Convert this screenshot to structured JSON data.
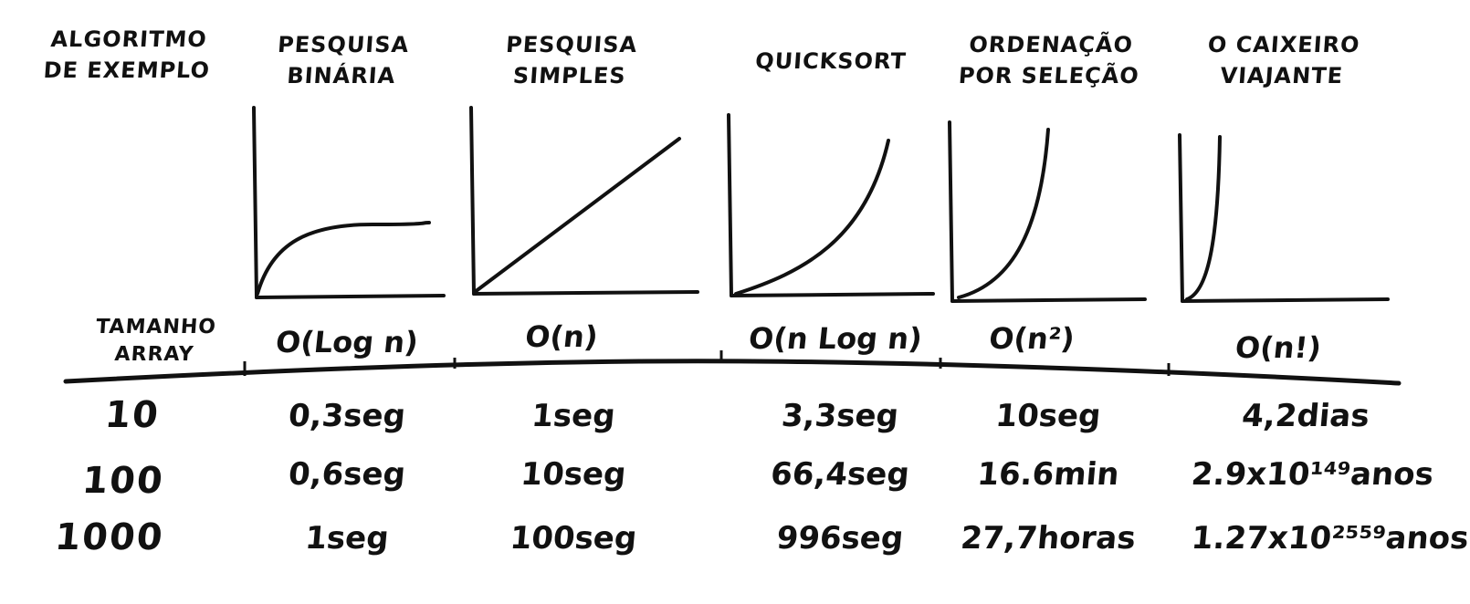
{
  "header": {
    "row_label": [
      "ALGORITMO",
      "DE EXEMPLO"
    ],
    "size_label": [
      "TAMANHO",
      "ARRAY"
    ]
  },
  "algorithms": [
    {
      "name": [
        "PESQUISA",
        "BINÁRIA"
      ],
      "complexity": "O(Log n)",
      "curve": "logarithmic",
      "times": [
        "0,3seg",
        "0,6seg",
        "1seg"
      ]
    },
    {
      "name": [
        "PESQUISA",
        "SIMPLES"
      ],
      "complexity": "O(n)",
      "curve": "linear",
      "times": [
        "1seg",
        "10seg",
        "100seg"
      ]
    },
    {
      "name": [
        "QUICKSORT"
      ],
      "complexity": "O(n Log n)",
      "curve": "n-log-n",
      "times": [
        "3,3seg",
        "66,4seg",
        "996seg"
      ]
    },
    {
      "name": [
        "ORDENAÇÃO",
        "POR SELEÇÃO"
      ],
      "complexity": "O(n²)",
      "curve": "quadratic",
      "times": [
        "10seg",
        "16.6min",
        "27,7horas"
      ]
    },
    {
      "name": [
        "O CAIXEIRO",
        "VIAJANTE"
      ],
      "complexity": "O(n!)",
      "curve": "factorial",
      "times": [
        "4,2dias",
        "2.9x10¹⁴⁹anos",
        "1.27x10²⁵⁵⁹anos"
      ]
    }
  ],
  "sizes": [
    "10",
    "100",
    "1000"
  ],
  "style": {
    "ink": "#111111",
    "paper": "#ffffff"
  }
}
